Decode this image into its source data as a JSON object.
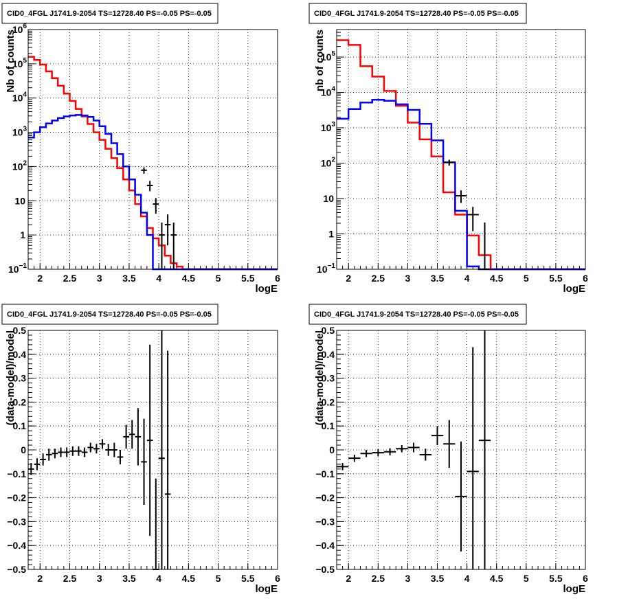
{
  "chart_data": [
    {
      "id": "top-left",
      "type": "line",
      "title": "CID0_4FGL J1741.9-2054 TS=12728.40 PS=-0.05 PS=-0.05",
      "xlabel": "logE",
      "ylabel": "Nb of counts",
      "xlim": [
        1.8,
        6.0
      ],
      "ylim": [
        0.1,
        1000000
      ],
      "log_y": true,
      "grid": true,
      "x_ticks": [
        "2",
        "2.5",
        "3",
        "3.5",
        "4",
        "4.5",
        "5",
        "5.5",
        "6"
      ],
      "y_ticks": [
        {
          "base": "10",
          "exp": "−1",
          "value": 0.1
        },
        {
          "base": "1",
          "exp": "",
          "value": 1
        },
        {
          "base": "10",
          "exp": "",
          "value": 10
        },
        {
          "base": "10",
          "exp": "2",
          "value": 100
        },
        {
          "base": "10",
          "exp": "3",
          "value": 1000
        },
        {
          "base": "10",
          "exp": "4",
          "value": 10000
        },
        {
          "base": "10",
          "exp": "5",
          "value": 100000
        },
        {
          "base": "10",
          "exp": "6",
          "value": 1000000
        }
      ],
      "bin_edges": [
        1.8,
        1.9,
        2.0,
        2.1,
        2.2,
        2.3,
        2.4,
        2.5,
        2.6,
        2.7,
        2.8,
        2.9,
        3.0,
        3.1,
        3.2,
        3.3,
        3.4,
        3.5,
        3.6,
        3.7,
        3.8,
        3.9,
        4.0,
        4.1,
        4.2,
        4.3,
        4.4,
        4.5,
        4.6,
        4.7,
        4.8,
        4.9,
        5.0,
        5.1,
        5.2,
        5.3,
        5.4,
        5.5,
        5.6,
        5.7,
        5.8,
        5.9,
        6.0
      ],
      "series": [
        {
          "color": "#ff0000",
          "values": [
            160000,
            130000,
            95000,
            60000,
            38000,
            23000,
            13500,
            8200,
            4800,
            2900,
            1750,
            1000,
            600,
            330,
            175,
            90,
            42,
            20,
            8,
            3.5,
            1.6,
            0.8,
            0.5,
            0.25,
            0.15,
            0.12,
            0.1,
            0.1,
            0.1,
            0.1,
            0.1,
            0.1,
            0.1,
            0.1,
            0.1,
            0.1,
            0.1,
            0.1,
            0.1,
            0.1,
            0.1,
            0.1
          ]
        },
        {
          "color": "#0000ff",
          "values": [
            700,
            1000,
            1400,
            1800,
            2200,
            2600,
            2900,
            3100,
            3200,
            3100,
            2800,
            2200,
            1500,
            900,
            480,
            230,
            100,
            42,
            15,
            4.5,
            1,
            0.1,
            0.1,
            0.1,
            0.1,
            0.1,
            0.1,
            0.1,
            0.1,
            0.1,
            0.1,
            0.1,
            0.1,
            0.1,
            0.1,
            0.1,
            0.1,
            0.1,
            0.1,
            0.1,
            0.1,
            0.1
          ]
        }
      ],
      "points": [
        {
          "x": 3.75,
          "y": 78,
          "xerr": 0.05,
          "ylo": 62,
          "yhi": 95
        },
        {
          "x": 3.85,
          "y": 28,
          "xerr": 0.05,
          "ylo": 19,
          "yhi": 38
        },
        {
          "x": 3.95,
          "y": 8,
          "xerr": 0.05,
          "ylo": 4.2,
          "yhi": 12
        },
        {
          "x": 4.05,
          "y": 1,
          "xerr": 0.05,
          "ylo": 0.1,
          "yhi": 2.3
        },
        {
          "x": 4.15,
          "y": 2,
          "xerr": 0.05,
          "ylo": 0.5,
          "yhi": 4
        },
        {
          "x": 4.25,
          "y": 1,
          "xerr": 0.05,
          "ylo": 0.1,
          "yhi": 2.3
        }
      ]
    },
    {
      "id": "top-right",
      "type": "line",
      "title": "CID0_4FGL J1741.9-2054 TS=12728.40 PS=-0.05 PS=-0.05",
      "xlabel": "logE",
      "ylabel": "nb of counts",
      "xlim": [
        1.8,
        6.0
      ],
      "ylim": [
        0.1,
        600000
      ],
      "log_y": true,
      "grid": true,
      "x_ticks": [
        "2",
        "2.5",
        "3",
        "3.5",
        "4",
        "4.5",
        "5",
        "5.5",
        "6"
      ],
      "y_ticks": [
        {
          "base": "10",
          "exp": "−1",
          "value": 0.1
        },
        {
          "base": "1",
          "exp": "",
          "value": 1
        },
        {
          "base": "10",
          "exp": "",
          "value": 10
        },
        {
          "base": "10",
          "exp": "2",
          "value": 100
        },
        {
          "base": "10",
          "exp": "3",
          "value": 1000
        },
        {
          "base": "10",
          "exp": "4",
          "value": 10000
        },
        {
          "base": "10",
          "exp": "5",
          "value": 100000
        }
      ],
      "bin_edges": [
        1.8,
        2.0,
        2.2,
        2.4,
        2.6,
        2.8,
        3.0,
        3.2,
        3.4,
        3.6,
        3.8,
        4.0,
        4.2,
        4.4,
        4.6,
        4.8,
        5.0,
        5.2,
        5.4,
        5.6,
        5.8,
        6.0
      ],
      "series": [
        {
          "color": "#ff0000",
          "values": [
            300000,
            220000,
            55000,
            28000,
            11000,
            4200,
            1400,
            470,
            155,
            15,
            3.5,
            0.9,
            0.25,
            0.1,
            0.1,
            0.1,
            0.1,
            0.1,
            0.1,
            0.1,
            0.1
          ]
        },
        {
          "color": "#0000ff",
          "values": [
            1800,
            3400,
            5200,
            6200,
            5800,
            4600,
            3200,
            1300,
            440,
            105,
            4.5,
            0.12,
            0.1,
            0.1,
            0.1,
            0.1,
            0.1,
            0.1,
            0.1,
            0.1,
            0.1
          ]
        }
      ],
      "points": [
        {
          "x": 3.7,
          "y": 105,
          "xerr": 0.1,
          "ylo": 85,
          "yhi": 125
        },
        {
          "x": 3.9,
          "y": 12,
          "xerr": 0.1,
          "ylo": 7.5,
          "yhi": 17
        },
        {
          "x": 4.1,
          "y": 3.5,
          "xerr": 0.1,
          "ylo": 1.2,
          "yhi": 5.8
        },
        {
          "x": 4.3,
          "y": 0.1,
          "xerr": 0.1,
          "ylo": 0.1,
          "yhi": 2.1
        }
      ]
    },
    {
      "id": "bottom-left",
      "type": "scatter",
      "title": "CID0_4FGL J1741.9-2054 TS=12728.40 PS=-0.05 PS=-0.05",
      "xlabel": "logE",
      "ylabel": "(data-model)/model",
      "xlim": [
        1.8,
        6.0
      ],
      "ylim": [
        -0.5,
        0.5
      ],
      "grid": true,
      "x_ticks": [
        "2",
        "2.5",
        "3",
        "3.5",
        "4",
        "4.5",
        "5",
        "5.5",
        "6"
      ],
      "y_ticks": [
        "−0.5",
        "−0.4",
        "−0.3",
        "−0.2",
        "−0.1",
        "0",
        "0.1",
        "0.2",
        "0.3",
        "0.4",
        "0.5"
      ],
      "points": [
        {
          "x": 1.85,
          "y": -0.08,
          "xerr": 0.05,
          "err": 0.025
        },
        {
          "x": 1.95,
          "y": -0.06,
          "xerr": 0.05,
          "err": 0.025
        },
        {
          "x": 2.05,
          "y": -0.04,
          "xerr": 0.05,
          "err": 0.025
        },
        {
          "x": 2.15,
          "y": -0.02,
          "xerr": 0.05,
          "err": 0.025
        },
        {
          "x": 2.25,
          "y": -0.015,
          "xerr": 0.05,
          "err": 0.02
        },
        {
          "x": 2.35,
          "y": -0.01,
          "xerr": 0.05,
          "err": 0.02
        },
        {
          "x": 2.45,
          "y": -0.01,
          "xerr": 0.05,
          "err": 0.02
        },
        {
          "x": 2.55,
          "y": -0.005,
          "xerr": 0.05,
          "err": 0.02
        },
        {
          "x": 2.65,
          "y": -0.005,
          "xerr": 0.05,
          "err": 0.02
        },
        {
          "x": 2.75,
          "y": -0.01,
          "xerr": 0.05,
          "err": 0.02
        },
        {
          "x": 2.85,
          "y": 0.01,
          "xerr": 0.05,
          "err": 0.02
        },
        {
          "x": 2.95,
          "y": 0.005,
          "xerr": 0.05,
          "err": 0.02
        },
        {
          "x": 3.05,
          "y": 0.025,
          "xerr": 0.05,
          "err": 0.02
        },
        {
          "x": 3.15,
          "y": 0,
          "xerr": 0.05,
          "err": 0.025
        },
        {
          "x": 3.25,
          "y": 0,
          "xerr": 0.05,
          "err": 0.03
        },
        {
          "x": 3.35,
          "y": -0.03,
          "xerr": 0.05,
          "err": 0.03
        },
        {
          "x": 3.45,
          "y": 0.055,
          "xerr": 0.05,
          "err": 0.05
        },
        {
          "x": 3.55,
          "y": 0.065,
          "xerr": 0.05,
          "err": 0.06
        },
        {
          "x": 3.65,
          "y": 0.055,
          "xerr": 0.05,
          "err": 0.12
        },
        {
          "x": 3.75,
          "y": -0.05,
          "xerr": 0.05,
          "err": 0.18
        },
        {
          "x": 3.85,
          "y": 0.04,
          "xerr": 0.05,
          "err": 0.4
        },
        {
          "x": 3.95,
          "y": -0.5,
          "xerr": 0.05,
          "err": 0.38
        },
        {
          "x": 4.05,
          "y": -0.035,
          "xerr": 0.05,
          "err": 0.6
        },
        {
          "x": 4.15,
          "y": -0.185,
          "xerr": 0.05,
          "err": 0.6
        }
      ]
    },
    {
      "id": "bottom-right",
      "type": "scatter",
      "title": "CID0_4FGL J1741.9-2054 TS=12728.40 PS=-0.05 PS=-0.05",
      "xlabel": "logE",
      "ylabel": "(data-model)/model",
      "xlim": [
        1.8,
        6.0
      ],
      "ylim": [
        -0.5,
        0.5
      ],
      "grid": true,
      "x_ticks": [
        "2",
        "2.5",
        "3",
        "3.5",
        "4",
        "4.5",
        "5",
        "5.5",
        "6"
      ],
      "y_ticks": [
        "−0.5",
        "−0.4",
        "−0.3",
        "−0.2",
        "−0.1",
        "0",
        "0.1",
        "0.2",
        "0.3",
        "0.4",
        "0.5"
      ],
      "points": [
        {
          "x": 1.9,
          "y": -0.07,
          "xerr": 0.1,
          "err": 0.015
        },
        {
          "x": 2.1,
          "y": -0.035,
          "xerr": 0.1,
          "err": 0.015
        },
        {
          "x": 2.3,
          "y": -0.015,
          "xerr": 0.1,
          "err": 0.015
        },
        {
          "x": 2.5,
          "y": -0.012,
          "xerr": 0.1,
          "err": 0.015
        },
        {
          "x": 2.7,
          "y": -0.008,
          "xerr": 0.1,
          "err": 0.015
        },
        {
          "x": 2.9,
          "y": 0.005,
          "xerr": 0.1,
          "err": 0.015
        },
        {
          "x": 3.1,
          "y": 0.01,
          "xerr": 0.1,
          "err": 0.02
        },
        {
          "x": 3.3,
          "y": -0.02,
          "xerr": 0.1,
          "err": 0.025
        },
        {
          "x": 3.5,
          "y": 0.06,
          "xerr": 0.1,
          "err": 0.04
        },
        {
          "x": 3.7,
          "y": 0.025,
          "xerr": 0.1,
          "err": 0.1
        },
        {
          "x": 3.9,
          "y": -0.195,
          "xerr": 0.1,
          "err": 0.23
        },
        {
          "x": 4.1,
          "y": -0.09,
          "xerr": 0.1,
          "err": 0.52
        },
        {
          "x": 4.3,
          "y": 0.04,
          "xerr": 0.1,
          "err": 0.6
        }
      ]
    }
  ]
}
